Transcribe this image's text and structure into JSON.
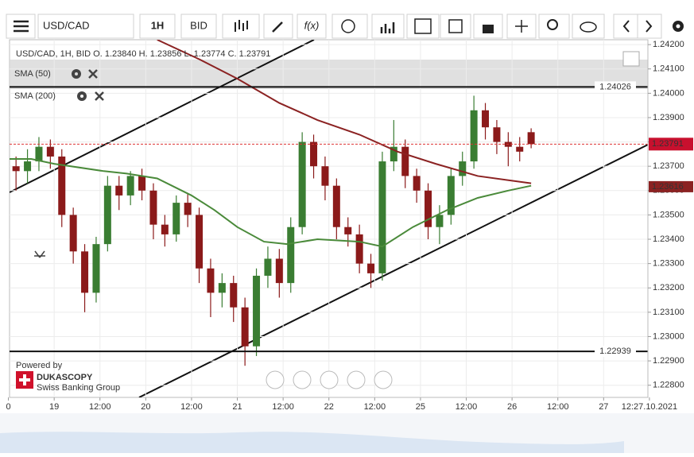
{
  "toolbar": {
    "symbol": "USD/CAD",
    "timeframe": "1H",
    "price_type": "BID",
    "function": "f(x)"
  },
  "chart_data": {
    "type": "candlestick",
    "title": "USD/CAD, 1H, BID    O. 1.23840 H. 1.23856 L. 1.23774 C. 1.23791",
    "x": [
      -10,
      -7,
      -4,
      -1,
      2,
      5,
      8,
      11,
      14,
      17,
      20,
      23,
      26,
      29,
      32,
      35,
      38,
      41,
      44,
      47,
      50,
      53,
      56,
      59,
      62,
      65,
      68,
      71,
      74,
      77,
      80,
      83,
      86,
      89,
      92,
      95,
      98,
      101,
      104,
      107,
      110,
      113,
      116,
      119,
      122,
      125
    ],
    "open": [
      1.237,
      1.2368,
      1.2372,
      1.2378,
      1.2374,
      1.235,
      1.2335,
      1.2318,
      1.2338,
      1.2362,
      1.2358,
      1.2366,
      1.236,
      1.2346,
      1.2342,
      1.2355,
      1.235,
      1.2328,
      1.2318,
      1.2322,
      1.2312,
      1.2296,
      1.2325,
      1.2332,
      1.2322,
      1.2345,
      1.238,
      1.237,
      1.2362,
      1.2345,
      1.2342,
      1.233,
      1.2326,
      1.2372,
      1.2378,
      1.2366,
      1.236,
      1.2345,
      1.235,
      1.2366,
      1.2372,
      1.2393,
      1.2386,
      1.238,
      1.2378,
      1.2384
    ],
    "high": [
      1.2374,
      1.2377,
      1.2382,
      1.2381,
      1.2377,
      1.2353,
      1.2338,
      1.2341,
      1.2366,
      1.2366,
      1.2368,
      1.2369,
      1.2363,
      1.235,
      1.2358,
      1.2359,
      1.2353,
      1.2332,
      1.2326,
      1.2325,
      1.2316,
      1.2328,
      1.2337,
      1.2336,
      1.2349,
      1.2384,
      1.2383,
      1.2374,
      1.2365,
      1.2349,
      1.2346,
      1.2334,
      1.2376,
      1.2389,
      1.2381,
      1.2369,
      1.2363,
      1.2354,
      1.2369,
      1.2376,
      1.2399,
      1.2396,
      1.2389,
      1.2384,
      1.2382,
      1.23856
    ],
    "low": [
      1.236,
      1.2363,
      1.2368,
      1.2369,
      1.2345,
      1.233,
      1.231,
      1.2314,
      1.2335,
      1.2352,
      1.2354,
      1.2356,
      1.234,
      1.2337,
      1.2339,
      1.2345,
      1.2322,
      1.2308,
      1.2312,
      1.2306,
      1.2288,
      1.2292,
      1.232,
      1.2316,
      1.2318,
      1.2342,
      1.2365,
      1.2356,
      1.234,
      1.2337,
      1.2326,
      1.232,
      1.2323,
      1.2368,
      1.2361,
      1.2355,
      1.234,
      1.2338,
      1.2346,
      1.2362,
      1.2369,
      1.2381,
      1.2375,
      1.237,
      1.2372,
      1.23774
    ],
    "close": [
      1.2368,
      1.2372,
      1.2378,
      1.2374,
      1.235,
      1.2335,
      1.2318,
      1.2338,
      1.2362,
      1.2358,
      1.2366,
      1.236,
      1.2346,
      1.2342,
      1.2355,
      1.235,
      1.2328,
      1.2318,
      1.2322,
      1.2312,
      1.2296,
      1.2325,
      1.2332,
      1.2322,
      1.2345,
      1.238,
      1.237,
      1.2362,
      1.2345,
      1.2342,
      1.233,
      1.2326,
      1.2372,
      1.2378,
      1.2366,
      1.236,
      1.2345,
      1.235,
      1.2366,
      1.2372,
      1.2393,
      1.2386,
      1.238,
      1.2378,
      1.2376,
      1.23791
    ],
    "up_color": "#3a7d32",
    "down_color": "#8b1a1a",
    "series": [
      {
        "name": "SMA (50)",
        "color": "#4a8a3a",
        "x": [
          -12,
          -6,
          0,
          13,
          19,
          27,
          36,
          42,
          48,
          55,
          61,
          69,
          80,
          86,
          94,
          103,
          111,
          119,
          125
        ],
        "values": [
          1.2373,
          1.2373,
          1.2371,
          1.2368,
          1.2367,
          1.2365,
          1.2358,
          1.2352,
          1.2345,
          1.2339,
          1.2338,
          1.234,
          1.2339,
          1.2337,
          1.2345,
          1.2352,
          1.2357,
          1.236,
          1.2362
        ]
      },
      {
        "name": "SMA (200)",
        "color": "#8b2222",
        "x": [
          27,
          38,
          48,
          59,
          69,
          80,
          90,
          100,
          111,
          125
        ],
        "values": [
          1.2422,
          1.2414,
          1.2406,
          1.2396,
          1.2389,
          1.2383,
          1.2376,
          1.2371,
          1.2366,
          1.2363
        ]
      }
    ],
    "xlim": [
      -11.7,
      155.6
    ],
    "xticks": [
      {
        "value": -12,
        "label": "0"
      },
      {
        "value": 0,
        "label": "19"
      },
      {
        "value": 12,
        "label": "12:00"
      },
      {
        "value": 24,
        "label": "20"
      },
      {
        "value": 36,
        "label": "12:00"
      },
      {
        "value": 48,
        "label": "21"
      },
      {
        "value": 60,
        "label": "12:00"
      },
      {
        "value": 72,
        "label": "22"
      },
      {
        "value": 84,
        "label": "12:00"
      },
      {
        "value": 96,
        "label": "25"
      },
      {
        "value": 108,
        "label": "12:00"
      },
      {
        "value": 120,
        "label": "26"
      },
      {
        "value": 132,
        "label": "12:00"
      },
      {
        "value": 144,
        "label": "27"
      },
      {
        "value": 156,
        "label": "12:27.10.2021"
      }
    ],
    "ylim": [
      1.2275,
      1.2422
    ],
    "yticks": [
      {
        "value": 1.228,
        "label": "1.22800"
      },
      {
        "value": 1.229,
        "label": "1.22900"
      },
      {
        "value": 1.23,
        "label": "1.23000"
      },
      {
        "value": 1.231,
        "label": "1.23100"
      },
      {
        "value": 1.232,
        "label": "1.23200"
      },
      {
        "value": 1.233,
        "label": "1.23300"
      },
      {
        "value": 1.234,
        "label": "1.23400"
      },
      {
        "value": 1.235,
        "label": "1.23500"
      },
      {
        "value": 1.236,
        "label": "1.23600"
      },
      {
        "value": 1.237,
        "label": "1.23700"
      },
      {
        "value": 1.238,
        "label": "1.23800"
      },
      {
        "value": 1.239,
        "label": "1.23900"
      },
      {
        "value": 1.24,
        "label": "1.24000"
      },
      {
        "value": 1.241,
        "label": "1.24100"
      },
      {
        "value": 1.242,
        "label": "1.24200"
      }
    ],
    "grid": true,
    "levels": [
      1.24026,
      1.22939
    ],
    "last_price": 1.23791,
    "sma_price": 1.23616
  },
  "branding": {
    "powered_by": "Powered by",
    "brand": "DUKASCOPY",
    "tagline": "Swiss Banking Group"
  }
}
